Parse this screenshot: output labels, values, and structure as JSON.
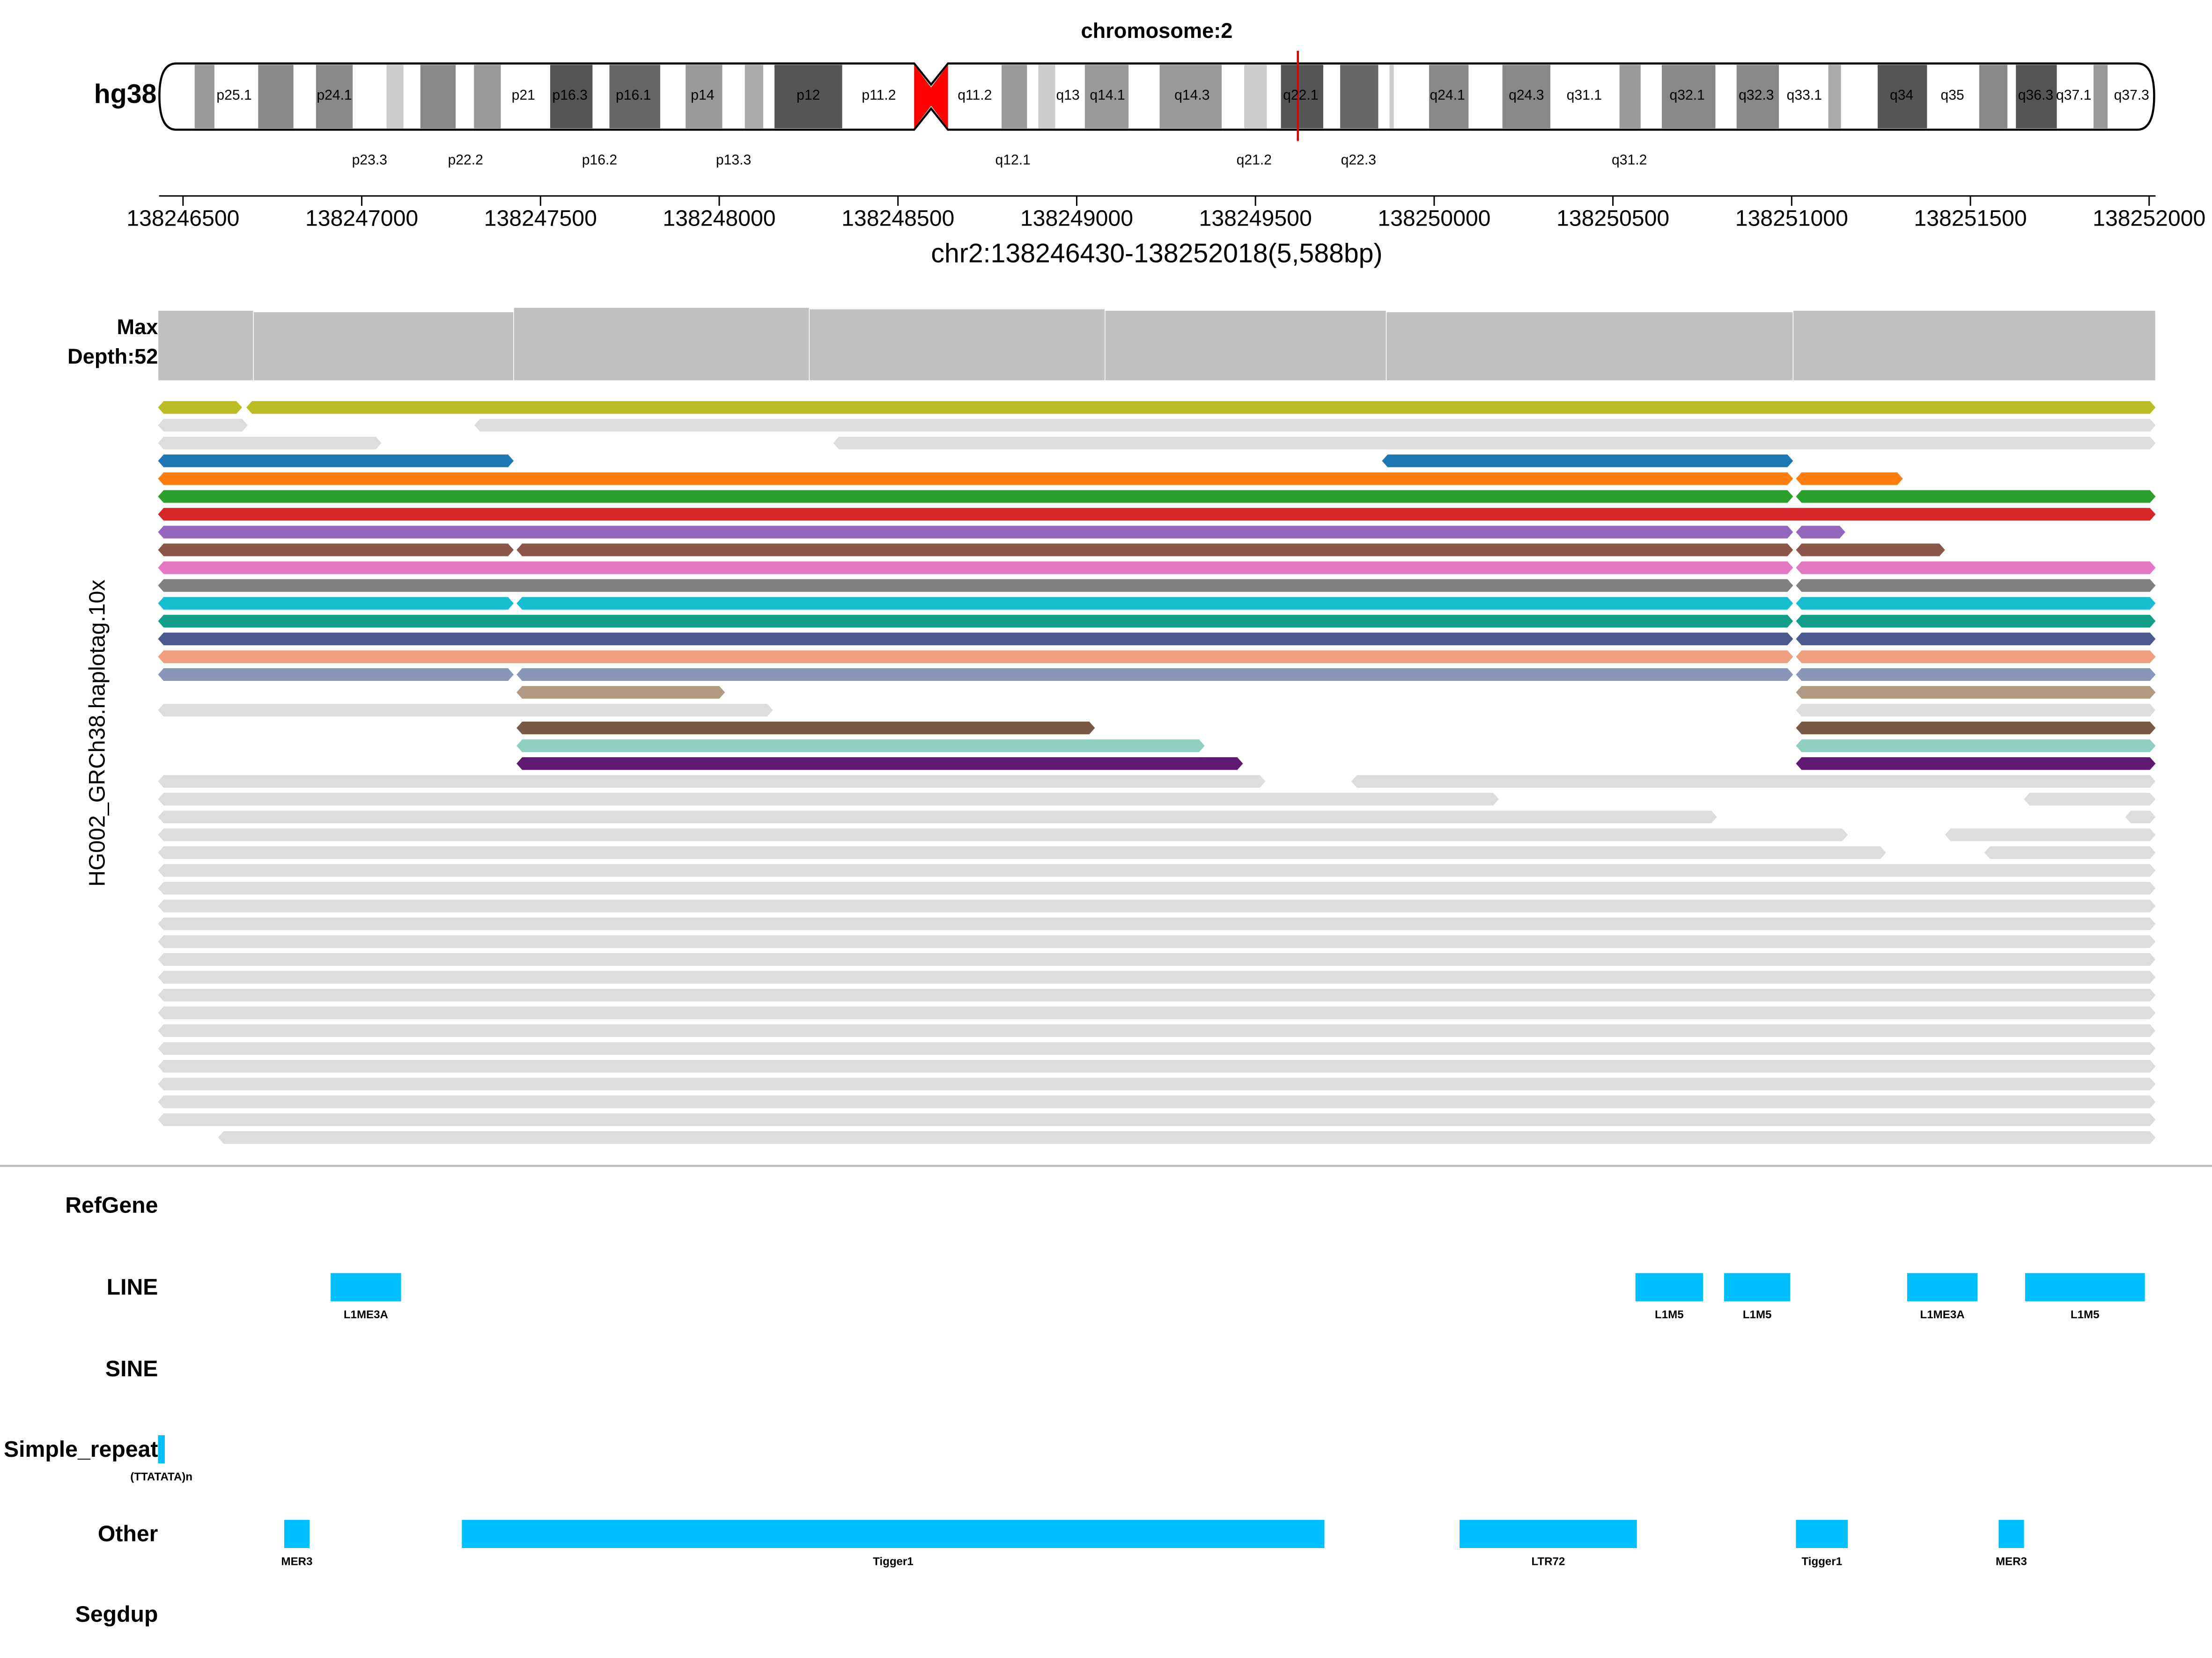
{
  "ideogram": {
    "title": "chromosome:2",
    "genome": "hg38",
    "bands_top": [
      "p25.1",
      "p24.1",
      "p21",
      "p16.3",
      "p16.1",
      "p14",
      "p12",
      "p11.2",
      "q11.2",
      "q13",
      "q14.1",
      "q14.3",
      "q22.1",
      "q24.1",
      "q24.3",
      "q31.1",
      "q32.1",
      "q32.3",
      "q33.1",
      "q34",
      "q35",
      "q36.3",
      "q37.1",
      "q37.3"
    ],
    "bands_bottom": [
      "p23.3",
      "p22.2",
      "p16.2",
      "p13.3",
      "q12.1",
      "q21.2",
      "q22.3",
      "q31.2"
    ]
  },
  "axis": {
    "xlim": [
      138246430,
      138252018
    ],
    "xticks": [
      138246500,
      138247000,
      138247500,
      138248000,
      138248500,
      138249000,
      138249500,
      138250000,
      138250500,
      138251000,
      138251500,
      138252000
    ],
    "label": "chr2:138246430-138252018(5,588bp)"
  },
  "coverage": {
    "label": [
      "Max",
      "Depth:52"
    ],
    "max": 52,
    "bins": [
      138246430,
      138246697,
      138247425,
      138248252,
      138249079,
      138249866,
      138251004,
      138252018
    ],
    "depths": [
      48,
      47,
      50,
      49,
      48,
      47,
      48
    ],
    "color": "#c0c0c0"
  },
  "track_label": "HG002_GRCh38.haplotag.10x",
  "reads": [
    {
      "color": "#bcbd22",
      "segments": [
        [
          138246430,
          138246665
        ],
        [
          138246677,
          138252018
        ]
      ]
    },
    {
      "color": "#dddddd",
      "segments": [
        [
          138246430,
          138246681
        ],
        [
          138247315,
          138252018
        ]
      ]
    },
    {
      "color": "#dddddd",
      "segments": [
        [
          138246430,
          138247055
        ],
        [
          138248319,
          138252018
        ]
      ]
    },
    {
      "color": "#1f77b4",
      "segments": [
        [
          138246430,
          138247425
        ],
        [
          138249854,
          138251004
        ]
      ]
    },
    {
      "color": "#ff7f0e",
      "segments": [
        [
          138246430,
          138251004
        ],
        [
          138251012,
          138251311
        ]
      ]
    },
    {
      "color": "#2ca02c",
      "segments": [
        [
          138246430,
          138251004
        ],
        [
          138251012,
          138252018
        ]
      ]
    },
    {
      "color": "#d62728",
      "segments": [
        [
          138246430,
          138252018
        ]
      ]
    },
    {
      "color": "#9467bd",
      "segments": [
        [
          138246430,
          138251004
        ],
        [
          138251012,
          138251150
        ]
      ]
    },
    {
      "color": "#8c564b",
      "segments": [
        [
          138246430,
          138247425
        ],
        [
          138247433,
          138251004
        ],
        [
          138251012,
          138251429
        ]
      ]
    },
    {
      "color": "#e377c2",
      "segments": [
        [
          138246430,
          138251004
        ],
        [
          138251012,
          138252018
        ]
      ]
    },
    {
      "color": "#7f7f7f",
      "segments": [
        [
          138246430,
          138251004
        ],
        [
          138251012,
          138252018
        ]
      ]
    },
    {
      "color": "#17becf",
      "segments": [
        [
          138246430,
          138247425
        ],
        [
          138247433,
          138251004
        ],
        [
          138251012,
          138252018
        ]
      ]
    },
    {
      "color": "#139e8a",
      "segments": [
        [
          138246430,
          138251004
        ],
        [
          138251012,
          138252018
        ]
      ]
    },
    {
      "color": "#4a5a8f",
      "segments": [
        [
          138246430,
          138251004
        ],
        [
          138251012,
          138252018
        ]
      ]
    },
    {
      "color": "#f0a080",
      "segments": [
        [
          138246430,
          138251004
        ],
        [
          138251012,
          138252018
        ]
      ]
    },
    {
      "color": "#8a96b8",
      "segments": [
        [
          138246430,
          138247425
        ],
        [
          138247433,
          138251004
        ],
        [
          138251012,
          138252018
        ]
      ]
    },
    {
      "color": "#b09a84",
      "segments": [
        [
          138247433,
          138248016
        ],
        [
          138251012,
          138252018
        ]
      ]
    },
    {
      "color": "#dddddd",
      "segments": [
        [
          138246430,
          138248150
        ],
        [
          138251012,
          138252018
        ]
      ]
    },
    {
      "color": "#7a5a44",
      "segments": [
        [
          138247433,
          138249051
        ],
        [
          138251012,
          138252018
        ]
      ]
    },
    {
      "color": "#8fd0c0",
      "segments": [
        [
          138247433,
          138249358
        ],
        [
          138251012,
          138252018
        ]
      ]
    },
    {
      "color": "#5e1a6e",
      "segments": [
        [
          138247433,
          138249465
        ],
        [
          138251012,
          138252018
        ]
      ]
    },
    {
      "color": "#dddddd",
      "segments": [
        [
          138246430,
          138249528
        ],
        [
          138249768,
          138252018
        ]
      ]
    },
    {
      "color": "#dddddd",
      "segments": [
        [
          138246430,
          138250181
        ],
        [
          138251650,
          138252018
        ]
      ]
    },
    {
      "color": "#dddddd",
      "segments": [
        [
          138246430,
          138250791
        ],
        [
          138251933,
          138252018
        ]
      ]
    },
    {
      "color": "#dddddd",
      "segments": [
        [
          138246430,
          138251157
        ],
        [
          138251429,
          138252018
        ]
      ]
    },
    {
      "color": "#dddddd",
      "segments": [
        [
          138246430,
          138251264
        ],
        [
          138251539,
          138252018
        ]
      ]
    },
    {
      "color": "#dddddd",
      "segments": [
        [
          138246430,
          138252018
        ]
      ]
    },
    {
      "color": "#dddddd",
      "segments": [
        [
          138246430,
          138252018
        ]
      ]
    },
    {
      "color": "#dddddd",
      "segments": [
        [
          138246430,
          138252018
        ]
      ]
    },
    {
      "color": "#dddddd",
      "segments": [
        [
          138246430,
          138252018
        ]
      ]
    },
    {
      "color": "#dddddd",
      "segments": [
        [
          138246430,
          138252018
        ]
      ]
    },
    {
      "color": "#dddddd",
      "segments": [
        [
          138246430,
          138252018
        ]
      ]
    },
    {
      "color": "#dddddd",
      "segments": [
        [
          138246430,
          138252018
        ]
      ]
    },
    {
      "color": "#dddddd",
      "segments": [
        [
          138246430,
          138252018
        ]
      ]
    },
    {
      "color": "#dddddd",
      "segments": [
        [
          138246430,
          138252018
        ]
      ]
    },
    {
      "color": "#dddddd",
      "segments": [
        [
          138246430,
          138252018
        ]
      ]
    },
    {
      "color": "#dddddd",
      "segments": [
        [
          138246430,
          138252018
        ]
      ]
    },
    {
      "color": "#dddddd",
      "segments": [
        [
          138246430,
          138252018
        ]
      ]
    },
    {
      "color": "#dddddd",
      "segments": [
        [
          138246430,
          138252018
        ]
      ]
    },
    {
      "color": "#dddddd",
      "segments": [
        [
          138246430,
          138252018
        ]
      ]
    },
    {
      "color": "#dddddd",
      "segments": [
        [
          138246430,
          138252018
        ]
      ]
    },
    {
      "color": "#dddddd",
      "segments": [
        [
          138246598,
          138252018
        ]
      ]
    }
  ],
  "tracks": [
    {
      "name": "RefGene",
      "features": []
    },
    {
      "name": "LINE",
      "features": [
        {
          "name": "L1ME3A",
          "start": 138246913,
          "end": 138247110
        },
        {
          "name": "L1M5",
          "start": 138250563,
          "end": 138250752
        },
        {
          "name": "L1M5",
          "start": 138250811,
          "end": 138250996
        },
        {
          "name": "L1ME3A",
          "start": 138251323,
          "end": 138251520
        },
        {
          "name": "L1M5",
          "start": 138251653,
          "end": 138251988
        }
      ]
    },
    {
      "name": "SINE",
      "features": []
    },
    {
      "name": "Simple_repeat",
      "features": [
        {
          "name": "(TTATATA)n",
          "start": 138246430,
          "end": 138246449
        }
      ]
    },
    {
      "name": "Other",
      "features": [
        {
          "name": "MER3",
          "start": 138246783,
          "end": 138246854
        },
        {
          "name": "Tigger1",
          "start": 138247280,
          "end": 138249693
        },
        {
          "name": "LTR72",
          "start": 138250071,
          "end": 138250567
        },
        {
          "name": "Tigger1",
          "start": 138251012,
          "end": 138251157
        },
        {
          "name": "MER3",
          "start": 138251579,
          "end": 138251650
        }
      ]
    },
    {
      "name": "Segdup",
      "features": []
    }
  ],
  "feature_color": "#00bfff"
}
